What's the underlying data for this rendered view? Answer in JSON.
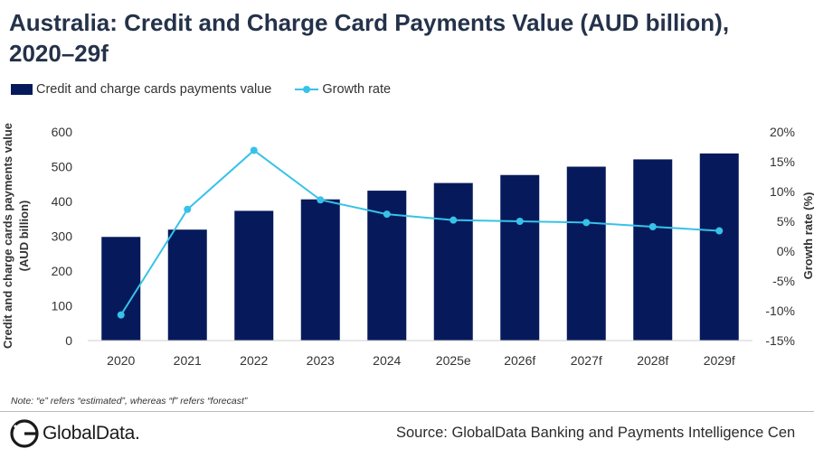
{
  "header": {
    "title_line1": "Australia: Credit and Charge Card Payments Value (AUD billion),",
    "title_line2": "2020–29f"
  },
  "legend": {
    "bars_label": "Credit and charge cards payments value",
    "line_label": "Growth rate"
  },
  "colors": {
    "bars": "#061a5b",
    "line": "#37c2e8",
    "axis_text": "#333333"
  },
  "chart_data": {
    "type": "bar",
    "categories": [
      "2020",
      "2021",
      "2022",
      "2023",
      "2024",
      "2025e",
      "2026f",
      "2027f",
      "2028f",
      "2029f"
    ],
    "series": [
      {
        "name": "Credit and charge cards payments value",
        "type": "bar",
        "axis": "left",
        "values": [
          298,
          319,
          373,
          406,
          431,
          453,
          476,
          500,
          521,
          538
        ]
      },
      {
        "name": "Growth rate",
        "type": "line",
        "axis": "right",
        "values": [
          -10.7,
          7.0,
          16.9,
          8.6,
          6.2,
          5.2,
          5.0,
          4.8,
          4.1,
          3.4
        ]
      }
    ],
    "ylabel_left_line1": "Credit and charge cards payments value",
    "ylabel_left_line2": "(AUD billion)",
    "ylabel_right": "Growth rate (%)",
    "ylim_left": [
      0,
      600
    ],
    "yticks_left": [
      "0",
      "100",
      "200",
      "300",
      "400",
      "500",
      "600"
    ],
    "ylim_right": [
      -15,
      20
    ],
    "yticks_right": [
      "-15%",
      "-10%",
      "-5%",
      "0%",
      "5%",
      "10%",
      "15%",
      "20%"
    ],
    "grid": false,
    "legend_position": "top-left"
  },
  "footnote": "Note: “e” refers “estimated”, whereas “f” refers “forecast”",
  "footer": {
    "logo_text": "GlobalData.",
    "source": "Source: GlobalData Banking and Payments Intelligence Cen"
  }
}
